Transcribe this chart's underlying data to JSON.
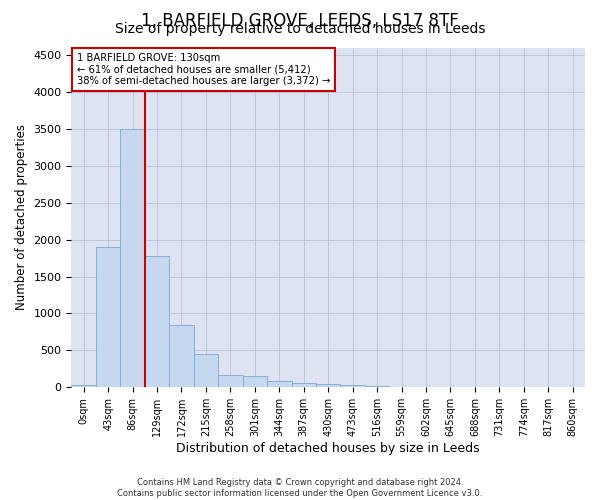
{
  "title": "1, BARFIELD GROVE, LEEDS, LS17 8TF",
  "subtitle": "Size of property relative to detached houses in Leeds",
  "xlabel": "Distribution of detached houses by size in Leeds",
  "ylabel": "Number of detached properties",
  "footer_line1": "Contains HM Land Registry data © Crown copyright and database right 2024.",
  "footer_line2": "Contains public sector information licensed under the Open Government Licence v3.0.",
  "bar_labels": [
    "0sqm",
    "43sqm",
    "86sqm",
    "129sqm",
    "172sqm",
    "215sqm",
    "258sqm",
    "301sqm",
    "344sqm",
    "387sqm",
    "430sqm",
    "473sqm",
    "516sqm",
    "559sqm",
    "602sqm",
    "645sqm",
    "688sqm",
    "731sqm",
    "774sqm",
    "817sqm",
    "860sqm"
  ],
  "bar_values": [
    30,
    1900,
    3500,
    1780,
    850,
    450,
    165,
    155,
    90,
    60,
    50,
    30,
    25,
    10,
    5,
    3,
    2,
    1,
    1,
    1,
    1
  ],
  "bar_color": "#c5d8f0",
  "bar_edge_color": "#7aaad0",
  "ylim": [
    0,
    4600
  ],
  "yticks": [
    0,
    500,
    1000,
    1500,
    2000,
    2500,
    3000,
    3500,
    4000,
    4500
  ],
  "property_line_x": 3,
  "property_line_color": "#cc0000",
  "annotation_text": "1 BARFIELD GROVE: 130sqm\n← 61% of detached houses are smaller (5,412)\n38% of semi-detached houses are larger (3,372) →",
  "annotation_box_color": "#cc0000",
  "grid_color": "#b0b8d8",
  "bg_color": "#dde3f0",
  "title_fontsize": 12,
  "subtitle_fontsize": 10,
  "footer_fontsize": 6
}
